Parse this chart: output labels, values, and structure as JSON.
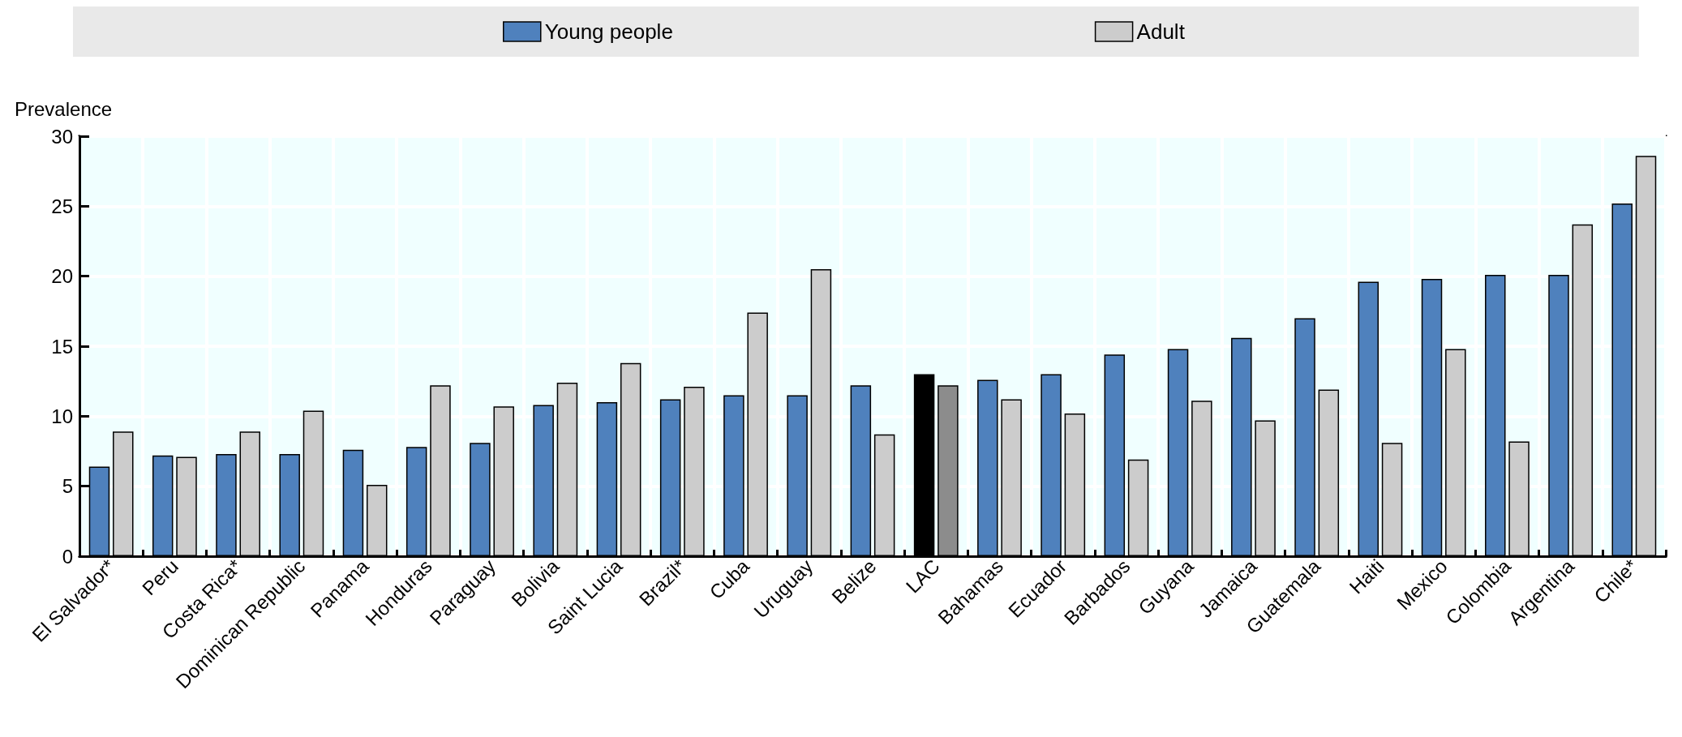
{
  "chart_data": {
    "type": "bar",
    "ylabel": "Prevalence",
    "categories": [
      "El Salvador*",
      "Peru",
      "Costa Rica*",
      "Dominican Republic",
      "Panama",
      "Honduras",
      "Paraguay",
      "Bolivia",
      "Saint Lucia",
      "Brazil*",
      "Cuba",
      "Uruguay",
      "Belize",
      "LAC",
      "Bahamas",
      "Ecuador",
      "Barbados",
      "Guyana",
      "Jamaica",
      "Guatemala",
      "Haiti",
      "Mexico",
      "Colombia",
      "Argentina",
      "Chile*"
    ],
    "series": [
      {
        "name": "Young people",
        "color": "#4f81bd",
        "colors": [
          "#4f81bd",
          "#4f81bd",
          "#4f81bd",
          "#4f81bd",
          "#4f81bd",
          "#4f81bd",
          "#4f81bd",
          "#4f81bd",
          "#4f81bd",
          "#4f81bd",
          "#4f81bd",
          "#4f81bd",
          "#4f81bd",
          "#000000",
          "#4f81bd",
          "#4f81bd",
          "#4f81bd",
          "#4f81bd",
          "#4f81bd",
          "#4f81bd",
          "#4f81bd",
          "#4f81bd",
          "#4f81bd",
          "#4f81bd",
          "#4f81bd"
        ],
        "values": [
          6.4,
          7.2,
          7.3,
          7.3,
          7.6,
          7.8,
          8.1,
          10.8,
          11.0,
          11.2,
          11.5,
          11.5,
          12.2,
          13.0,
          12.6,
          13.0,
          14.4,
          14.8,
          15.6,
          17.0,
          19.6,
          19.8,
          20.1,
          20.1,
          25.2
        ]
      },
      {
        "name": "Adult",
        "color": "#cccccc",
        "colors": [
          "#cccccc",
          "#cccccc",
          "#cccccc",
          "#cccccc",
          "#cccccc",
          "#cccccc",
          "#cccccc",
          "#cccccc",
          "#cccccc",
          "#cccccc",
          "#cccccc",
          "#cccccc",
          "#cccccc",
          "#8c8c8c",
          "#cccccc",
          "#cccccc",
          "#cccccc",
          "#cccccc",
          "#cccccc",
          "#cccccc",
          "#cccccc",
          "#cccccc",
          "#cccccc",
          "#cccccc",
          "#cccccc"
        ],
        "values": [
          8.9,
          7.1,
          8.9,
          10.4,
          5.1,
          12.2,
          10.7,
          12.4,
          13.8,
          12.1,
          17.4,
          20.5,
          8.7,
          12.2,
          11.2,
          10.2,
          6.9,
          11.1,
          9.7,
          11.9,
          8.1,
          14.8,
          8.2,
          23.7,
          28.6
        ]
      }
    ],
    "ylim": [
      0,
      30
    ],
    "yticks": [
      0,
      5,
      10,
      15,
      20,
      25,
      30
    ],
    "grid": true,
    "legend": "top"
  }
}
